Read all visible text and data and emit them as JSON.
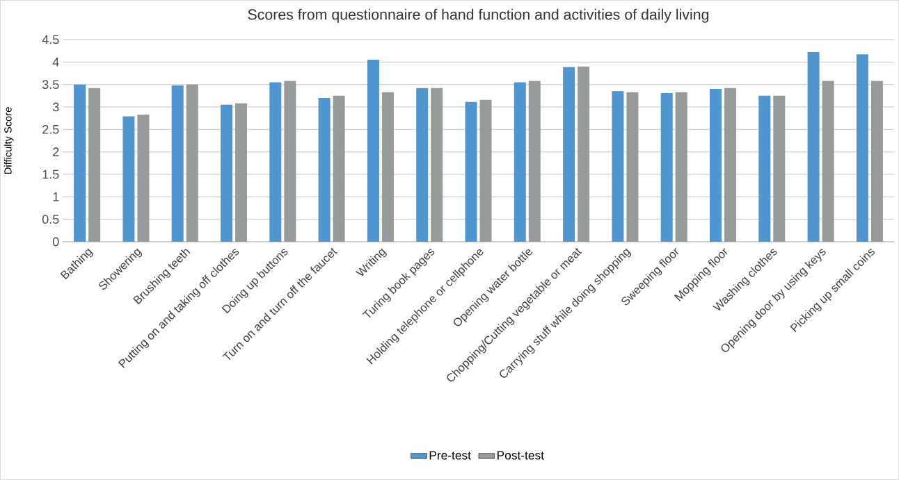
{
  "chart_data": {
    "type": "bar",
    "title": "Scores from questionnaire of hand function and activities of daily living",
    "ylabel": "Difficulty  Score",
    "categories": [
      "Bathing",
      "Showering",
      "Brushing teeth",
      "Putting on and taking off clothes",
      "Doing up buttons",
      "Turn on and turn off the faucet",
      "Writing",
      "Turing book pages",
      "Holding telephone or cellphone",
      "Opening water bottle",
      "Chopping/Cutting vegetable or meat",
      "Carrying stuff while doing shopping",
      "Sweeping floor",
      "Mopping floor",
      "Washing clothes",
      "Opening door by using keys",
      "Picking up small coins"
    ],
    "series": [
      {
        "name": "Pre-test",
        "color": "#4f96d0",
        "values": [
          3.5,
          2.79,
          3.48,
          3.05,
          3.55,
          3.2,
          4.05,
          3.42,
          3.11,
          3.55,
          3.89,
          3.35,
          3.31,
          3.4,
          3.25,
          4.22,
          4.17
        ]
      },
      {
        "name": "Post-test",
        "color": "#979a9b",
        "values": [
          3.42,
          2.83,
          3.5,
          3.08,
          3.58,
          3.25,
          3.33,
          3.42,
          3.16,
          3.58,
          3.9,
          3.33,
          3.33,
          3.42,
          3.25,
          3.58,
          3.58
        ]
      }
    ],
    "ylim": [
      0,
      4.5
    ],
    "yticks": [
      0,
      0.5,
      1,
      1.5,
      2,
      2.5,
      3,
      3.5,
      4,
      4.5
    ],
    "grid": "y",
    "legend": "bottom"
  }
}
